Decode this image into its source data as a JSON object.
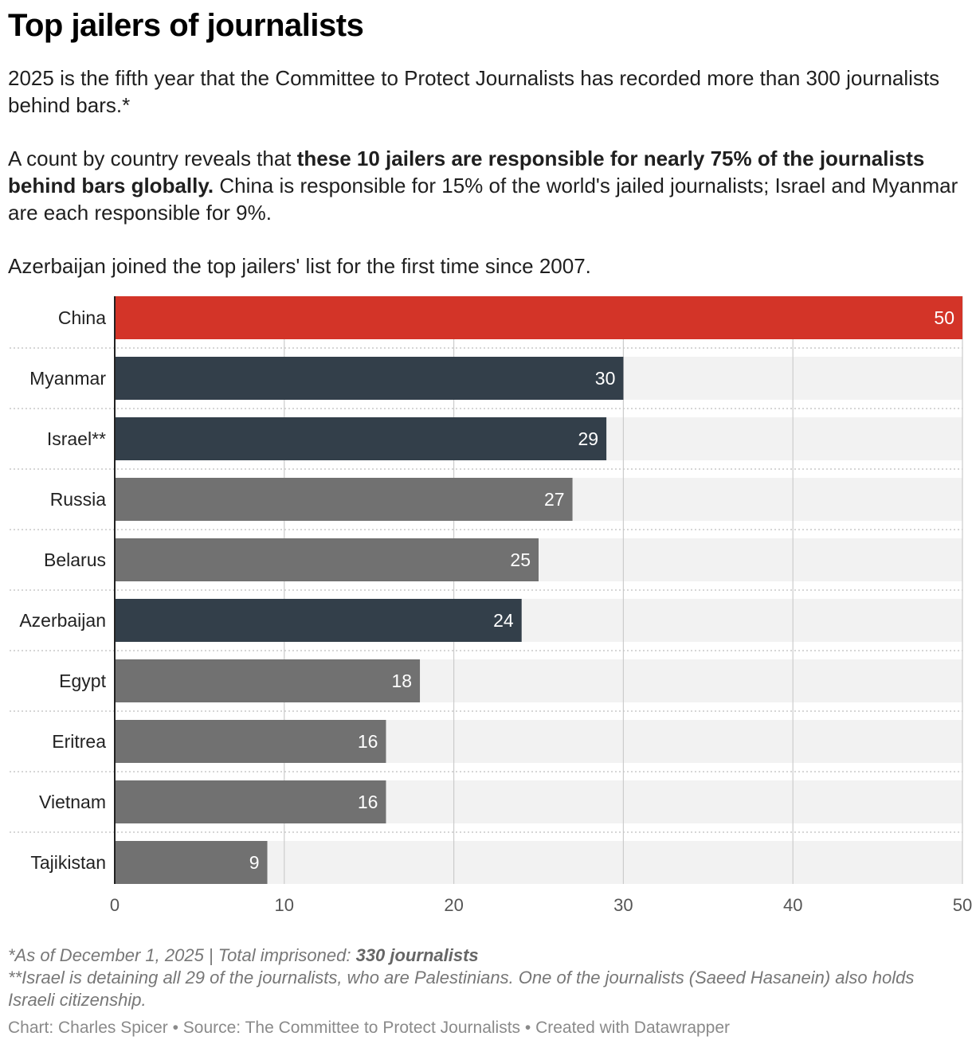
{
  "title": "Top jailers of journalists",
  "description": {
    "p1": "2025 is the fifth year that the Committee to Protect Journalists has recorded more than 300 journalists behind bars.*",
    "p2_pre": "A count by country reveals that ",
    "p2_bold": "these 10 jailers are responsible for nearly 75% of the journalists behind bars globally.",
    "p2_post": " China is responsible for 15% of the world's jailed journalists; Israel and Myanmar are each responsible for 9%.",
    "p3": "Azerbaijan joined the top jailers' list for the first time since 2007."
  },
  "notes": {
    "n1_pre": "*As of December 1, 2025 | Total imprisoned: ",
    "n1_bold": "330 journalists",
    "n2": "**Israel is detaining all 29 of the journalists, who are Palestinians. One of the journalists (Saeed Hasanein) also holds Israeli citizenship."
  },
  "credit": "Chart: Charles Spicer • Source: The Committee to Protect Journalists • Created with Datawrapper",
  "colors": {
    "highlight": "#d33428",
    "dark": "#333f4a",
    "grey": "#717171",
    "track": "#f2f2f2",
    "grid": "#cccccc"
  },
  "chart_data": {
    "type": "bar",
    "orientation": "horizontal",
    "categories": [
      "China",
      "Myanmar",
      "Israel**",
      "Russia",
      "Belarus",
      "Azerbaijan",
      "Egypt",
      "Eritrea",
      "Vietnam",
      "Tajikistan"
    ],
    "values": [
      50,
      30,
      29,
      27,
      25,
      24,
      18,
      16,
      16,
      9
    ],
    "bar_color_keys": [
      "highlight",
      "dark",
      "dark",
      "grey",
      "grey",
      "dark",
      "grey",
      "grey",
      "grey",
      "grey"
    ],
    "xlim": [
      0,
      50
    ],
    "xticks": [
      0,
      10,
      20,
      30,
      40,
      50
    ],
    "grid": true,
    "value_labels": true
  }
}
